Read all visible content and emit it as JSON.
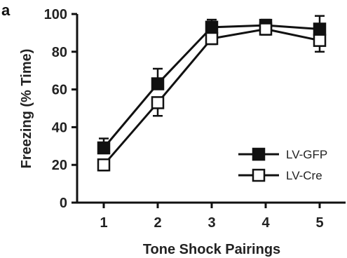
{
  "panel_label": "a",
  "chart_data": {
    "type": "line",
    "title": "",
    "xlabel": "Tone Shock Pairings",
    "ylabel": "Freezing (% Time)",
    "x": [
      1,
      2,
      3,
      4,
      5
    ],
    "xticks": [
      "1",
      "2",
      "3",
      "4",
      "5"
    ],
    "ylim": [
      0,
      100
    ],
    "yticks": [
      0,
      20,
      40,
      60,
      80,
      100
    ],
    "grid": false,
    "legend_position": "bottom-right",
    "series": [
      {
        "name": "LV-GFP",
        "marker": "filled-square",
        "color": "#111111",
        "values": [
          29,
          63,
          93,
          94,
          92
        ],
        "error": [
          5,
          8,
          4,
          3,
          7
        ]
      },
      {
        "name": "LV-Cre",
        "marker": "open-square",
        "color": "#111111",
        "values": [
          20,
          53,
          87,
          92,
          86
        ],
        "error": [
          3,
          7,
          3,
          3,
          6
        ]
      }
    ]
  }
}
